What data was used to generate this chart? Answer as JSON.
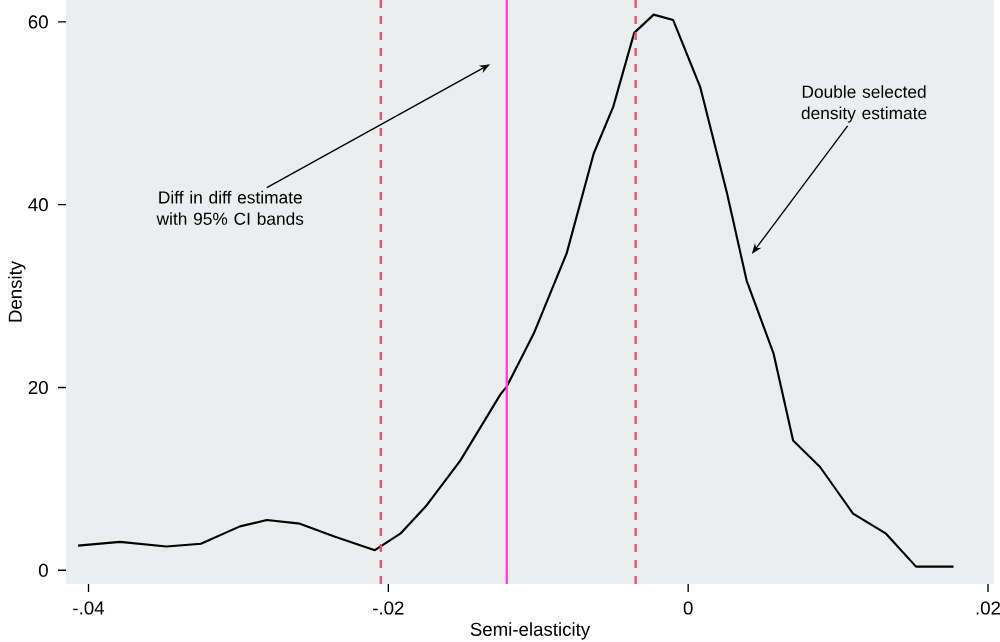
{
  "chart_data": {
    "type": "line",
    "xlabel": "Semi-elasticity",
    "ylabel": "Density",
    "x": [
      -0.0407,
      -0.0379,
      -0.0348,
      -0.0325,
      -0.0299,
      -0.0281,
      -0.0259,
      -0.0236,
      -0.0209,
      -0.0192,
      -0.0175,
      -0.0152,
      -0.0125,
      -0.0121,
      -0.0103,
      -0.0081,
      -0.0063,
      -0.005,
      -0.0036,
      -0.0023,
      -0.001,
      0.0008,
      0.0026,
      0.0039,
      0.0057,
      0.007,
      0.0088,
      0.011,
      0.0132,
      0.0152,
      0.0177
    ],
    "series": [
      {
        "color": "#000000",
        "values": [
          2.7,
          3.1,
          2.6,
          2.9,
          4.8,
          5.5,
          5.1,
          3.7,
          2.2,
          4.0,
          7,
          12,
          19.3,
          20.1,
          25.9,
          34.7,
          45.6,
          50.7,
          58.8,
          60.8,
          60.2,
          52.9,
          41.2,
          31.7,
          23.7,
          14.2,
          11.3,
          6.2,
          4.0,
          0.4,
          0.4
        ]
      }
    ],
    "xlim": [
      -0.0415,
      0.0204
    ],
    "ylim": [
      -1.5,
      62.4
    ],
    "xticks": [
      {
        "value": -0.04,
        "label": "-.04"
      },
      {
        "value": -0.02,
        "label": "-.02"
      },
      0,
      {
        "value": 0.02,
        "label": ".02"
      }
    ],
    "yticks": [
      0,
      20,
      40,
      60
    ],
    "grid": false,
    "marker": "none",
    "line_style": "solid",
    "ref_lines": [
      {
        "axis": "x",
        "value": -0.0205,
        "color": "#f0506e",
        "line_style": "dashed"
      },
      {
        "axis": "x",
        "value": -0.0121,
        "color": "#ff44cc",
        "line_style": "solid"
      },
      {
        "axis": "x",
        "value": -0.0035,
        "color": "#f0506e",
        "line_style": "dashed"
      }
    ],
    "annotations": [
      "Diff in diff estimate with 95% CI bands",
      "Double selected density estimate"
    ]
  }
}
